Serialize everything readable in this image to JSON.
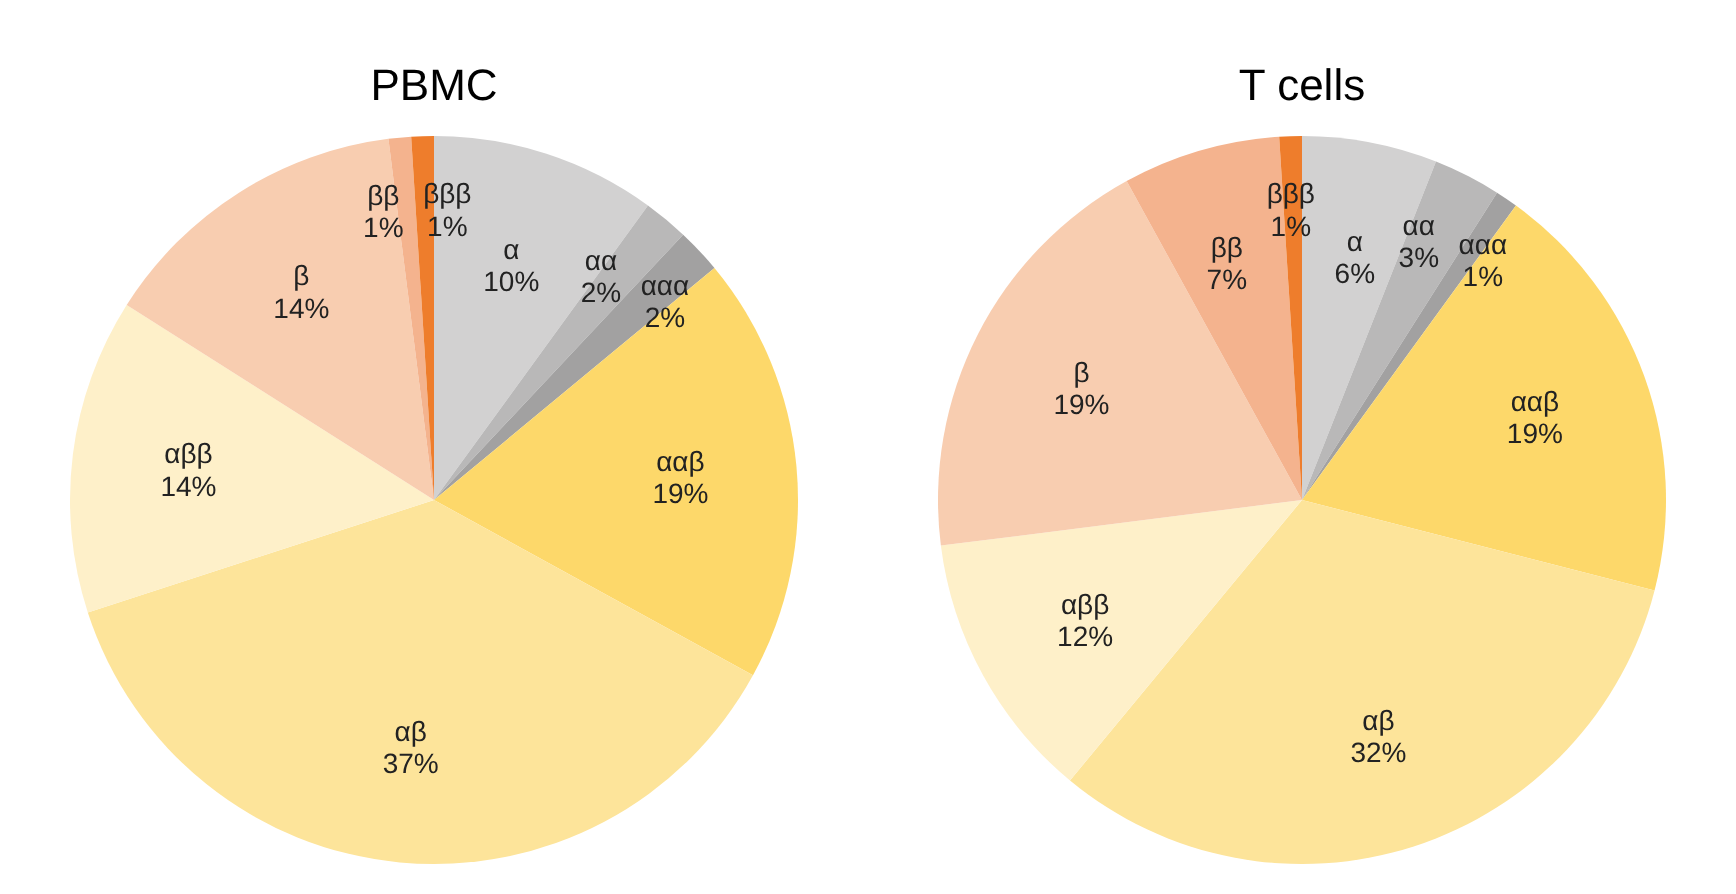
{
  "chart_data": [
    {
      "type": "pie",
      "title": "PBMC",
      "categories": [
        "α",
        "αα",
        "ααα",
        "ααβ",
        "αβ",
        "αββ",
        "β",
        "ββ",
        "βββ"
      ],
      "values": [
        10,
        2,
        2,
        19,
        37,
        14,
        14,
        1,
        1
      ],
      "colors": [
        "#d2d1d1",
        "#b9b8b8",
        "#a2a1a1",
        "#fdd86a",
        "#fde49a",
        "#fef0c9",
        "#f8cdb0",
        "#f4b38e",
        "#ee7d2c"
      ],
      "value_labels": [
        "10%",
        "2%",
        "2%",
        "19%",
        "37%",
        "14%",
        "14%",
        "1%",
        "1%"
      ]
    },
    {
      "type": "pie",
      "title": "T cells",
      "categories": [
        "α",
        "αα",
        "ααα",
        "ααβ",
        "αβ",
        "αββ",
        "β",
        "ββ",
        "βββ"
      ],
      "values": [
        6,
        3,
        1,
        19,
        32,
        12,
        19,
        7,
        1
      ],
      "colors": [
        "#d2d1d1",
        "#b9b8b8",
        "#a2a1a1",
        "#fdd86a",
        "#fde49a",
        "#fef0c9",
        "#f8cdb0",
        "#f4b38e",
        "#ee7d2c"
      ],
      "value_labels": [
        "6%",
        "3%",
        "1%",
        "19%",
        "32%",
        "12%",
        "19%",
        "7%",
        "1%"
      ]
    }
  ]
}
